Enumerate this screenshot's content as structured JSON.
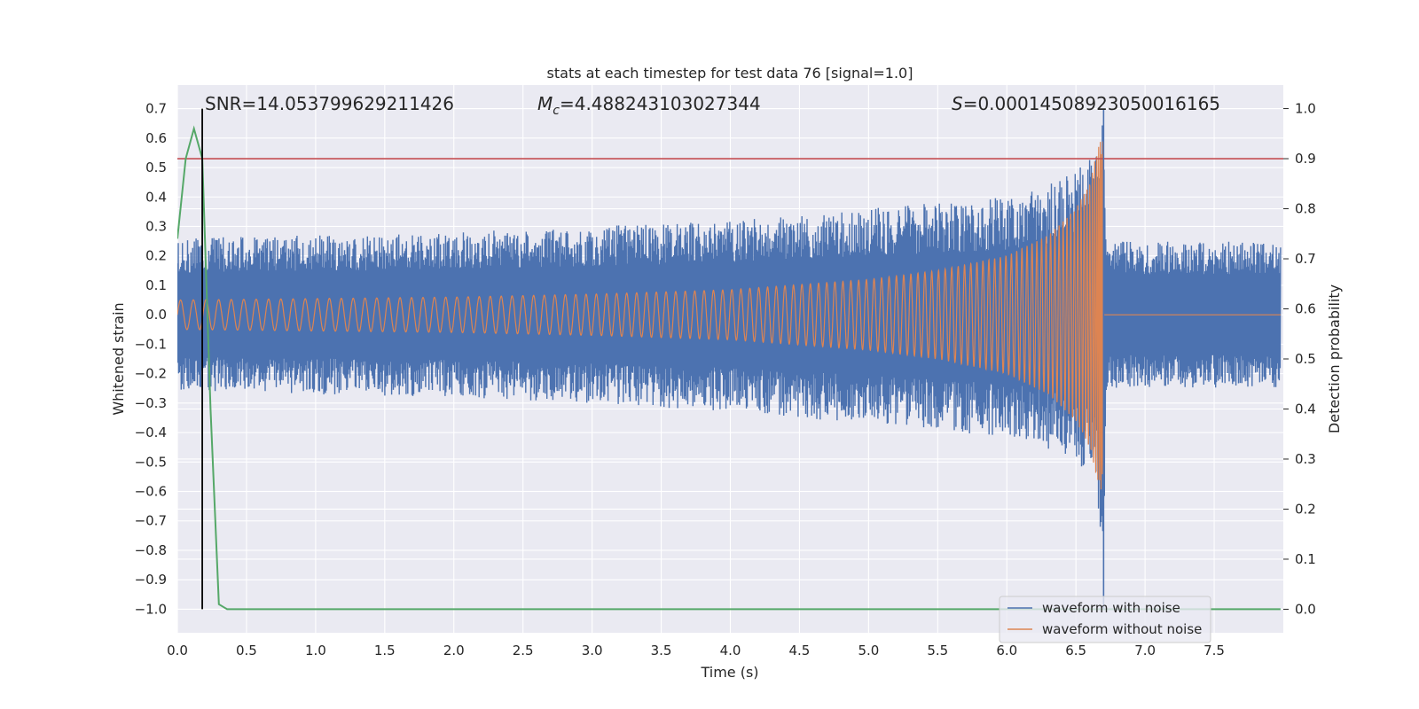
{
  "chart_data": {
    "type": "line",
    "title": "stats at each timestep for test data 76 [signal=1.0]",
    "xlabel": "Time (s)",
    "ylabel": "Whitened strain",
    "y2label": "Detection probability",
    "xlim": [
      0.0,
      8.0
    ],
    "ylim": [
      -1.08,
      0.78
    ],
    "y2lim": [
      -0.047,
      1.047
    ],
    "x_ticks": [
      "0.0",
      "0.5",
      "1.0",
      "1.5",
      "2.0",
      "2.5",
      "3.0",
      "3.5",
      "4.0",
      "4.5",
      "5.0",
      "5.5",
      "6.0",
      "6.5",
      "7.0",
      "7.5"
    ],
    "x_tick_values": [
      0,
      0.5,
      1,
      1.5,
      2,
      2.5,
      3,
      3.5,
      4,
      4.5,
      5,
      5.5,
      6,
      6.5,
      7,
      7.5
    ],
    "y_ticks": [
      "0.7",
      "0.6",
      "0.5",
      "0.4",
      "0.3",
      "0.2",
      "0.1",
      "0.0",
      "−0.1",
      "−0.2",
      "−0.3",
      "−0.4",
      "−0.5",
      "−0.6",
      "−0.7",
      "−0.8",
      "−0.9",
      "−1.0"
    ],
    "y_tick_values": [
      0.7,
      0.6,
      0.5,
      0.4,
      0.3,
      0.2,
      0.1,
      0.0,
      -0.1,
      -0.2,
      -0.3,
      -0.4,
      -0.5,
      -0.6,
      -0.7,
      -0.8,
      -0.9,
      -1.0
    ],
    "y2_ticks": [
      "1.0",
      "0.9",
      "0.8",
      "0.7",
      "0.6",
      "0.5",
      "0.4",
      "0.3",
      "0.2",
      "0.1",
      "0.0"
    ],
    "y2_tick_values": [
      1.0,
      0.9,
      0.8,
      0.7,
      0.6,
      0.5,
      0.4,
      0.3,
      0.2,
      0.1,
      0.0
    ],
    "annotations": {
      "snr": "SNR=14.053799629211426",
      "mc_symbol": "M",
      "mc_sub": "c",
      "mc_value": "=4.488243103027344",
      "s_symbol": "S",
      "s_value": "=0.00014508923050016165"
    },
    "merger_time": 6.7,
    "signal_start_time": 0.18,
    "threshold_probability": 0.9,
    "grid": true,
    "legend_position": "lower-right",
    "series": [
      {
        "name": "waveform with noise",
        "color": "#4c72b0",
        "axis": "left",
        "description_envelope": {
          "x": [
            0.0,
            1.0,
            2.0,
            3.0,
            4.0,
            5.0,
            5.5,
            6.0,
            6.3,
            6.5,
            6.6,
            6.65,
            6.7,
            6.72,
            7.0,
            8.0
          ],
          "upper": [
            0.26,
            0.27,
            0.28,
            0.3,
            0.32,
            0.36,
            0.38,
            0.4,
            0.44,
            0.5,
            0.56,
            0.62,
            0.7,
            0.25,
            0.25,
            0.25
          ],
          "lower": [
            -0.26,
            -0.27,
            -0.28,
            -0.3,
            -0.33,
            -0.37,
            -0.39,
            -0.42,
            -0.46,
            -0.5,
            -0.57,
            -0.62,
            -1.0,
            -0.25,
            -0.25,
            -0.25
          ]
        }
      },
      {
        "name": "waveform without noise",
        "color": "#dd8452",
        "axis": "left",
        "description_envelope": {
          "x": [
            0.0,
            1.0,
            2.0,
            3.0,
            4.0,
            5.0,
            5.5,
            6.0,
            6.3,
            6.5,
            6.6,
            6.65,
            6.7,
            6.72,
            8.0
          ],
          "upper": [
            0.05,
            0.055,
            0.06,
            0.07,
            0.085,
            0.12,
            0.15,
            0.2,
            0.27,
            0.36,
            0.45,
            0.55,
            0.62,
            0.0,
            0.0
          ],
          "lower": [
            -0.05,
            -0.055,
            -0.06,
            -0.07,
            -0.085,
            -0.12,
            -0.15,
            -0.2,
            -0.27,
            -0.36,
            -0.45,
            -0.55,
            -0.74,
            0.0,
            0.0
          ]
        }
      },
      {
        "name": "detection probability",
        "color": "#55a868",
        "axis": "right",
        "x": [
          0.0,
          0.06,
          0.12,
          0.18,
          0.24,
          0.3,
          0.36,
          0.42,
          8.0
        ],
        "values": [
          0.74,
          0.9,
          0.96,
          0.9,
          0.4,
          0.01,
          0.0,
          0.0,
          0.0
        ]
      }
    ]
  }
}
